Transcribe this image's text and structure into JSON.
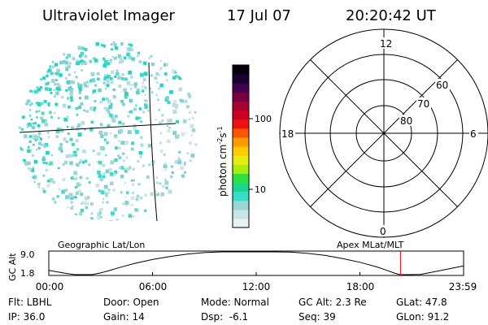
{
  "header": {
    "title": "Ultraviolet Imager",
    "date": "17 Jul 07",
    "time": "20:20:42 UT"
  },
  "colorbar": {
    "unit_label": "photon cm",
    "unit_exp1": "-2",
    "unit_mid": "s",
    "unit_exp2": "-1",
    "ticks": [
      {
        "label": "100",
        "value": 100
      },
      {
        "label": "10",
        "value": 10
      }
    ],
    "colors": [
      "#e8f2f2",
      "#c8e4e4",
      "#9ad8d8",
      "#36e0c8",
      "#18d890",
      "#30e040",
      "#a8ec10",
      "#e8ec10",
      "#ffcc00",
      "#ff9900",
      "#ff5500",
      "#ee1111",
      "#cc0022",
      "#a80030",
      "#780040",
      "#440050",
      "#1a0030",
      "#050010"
    ]
  },
  "polar": {
    "labels": {
      "top": "12",
      "bottom": "0",
      "left": "18",
      "right": "6"
    },
    "rings": [
      {
        "label": "60",
        "lat": 60
      },
      {
        "label": "70",
        "lat": 70
      },
      {
        "label": "80",
        "lat": 80
      }
    ]
  },
  "plot": {
    "left_title": "Geographic Lat/Lon",
    "right_title": "Apex MLat/MLT",
    "y_axis_label": "GC Alt",
    "y_ticks": [
      "9.0",
      "1.8"
    ],
    "x_ticks": [
      "00:00",
      "06:00",
      "12:00",
      "18:00",
      "23:59"
    ],
    "marker_time": "20:20:42"
  },
  "chart_data": {
    "type": "line",
    "title": "",
    "xlabel": "",
    "ylabel": "GC Alt",
    "xlim": [
      0,
      24
    ],
    "ylim": [
      1.8,
      9.0
    ],
    "series": [
      {
        "x": [
          0,
          0.5,
          1,
          1.5,
          2,
          2.5,
          3,
          3.5,
          4,
          5,
          6,
          7,
          8,
          9,
          10,
          11,
          11.5,
          12,
          12.5,
          13,
          14,
          15,
          16,
          17,
          18,
          19,
          19.5,
          20,
          20.3,
          20.8,
          21.5,
          22,
          23,
          24
        ],
        "y": [
          3.3,
          2.85,
          2.4,
          2.0,
          1.8,
          2.0,
          2.55,
          3.25,
          4.0,
          5.4,
          6.5,
          7.4,
          8.1,
          8.55,
          8.85,
          9.0,
          9.05,
          9.05,
          9.0,
          8.95,
          8.7,
          8.3,
          7.7,
          6.8,
          5.7,
          4.3,
          3.4,
          2.5,
          2.05,
          1.8,
          2.1,
          2.6,
          3.6,
          4.6
        ]
      }
    ],
    "marker_x": 20.35
  },
  "footer": {
    "rows": [
      [
        "Flt: LBHL",
        "Door: Open",
        "Mode: Normal",
        "GC Alt: 2.3 Re",
        "GLat: 47.8"
      ],
      [
        "IP: 36.0",
        "Gain: 14",
        "Dsp:  -6.1",
        "Seq: 39",
        "GLon: 91.2"
      ]
    ]
  }
}
